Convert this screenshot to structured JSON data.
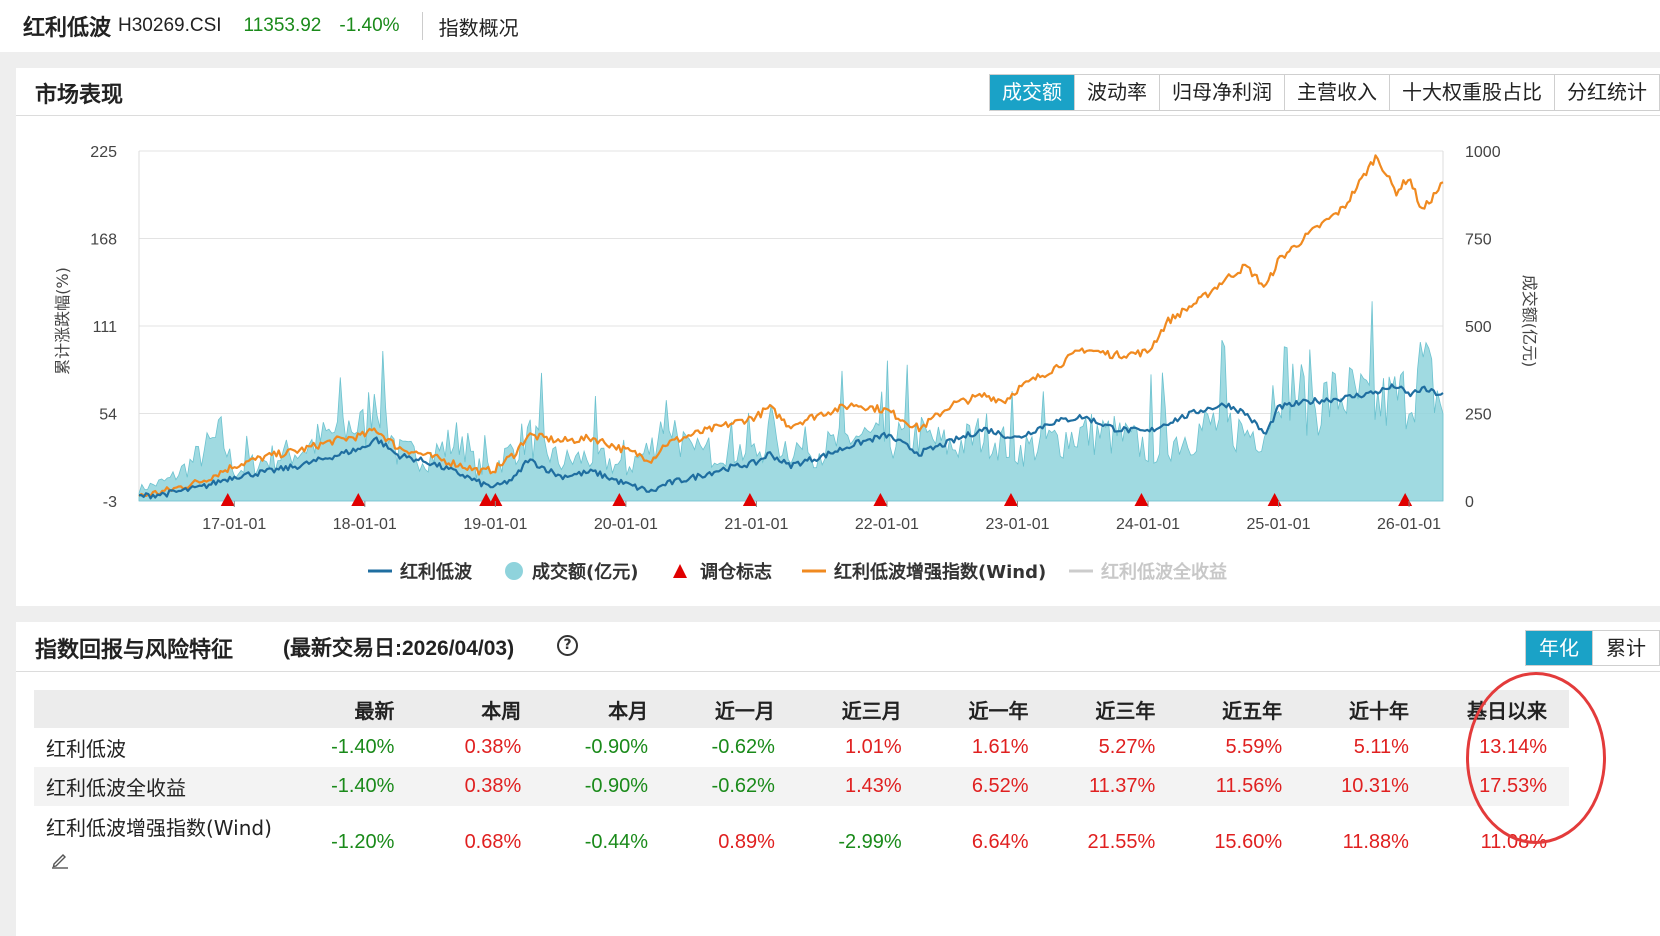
{
  "header": {
    "name": "红利低波",
    "code": "H30269.CSI",
    "price": "11353.92",
    "change": "-1.40%",
    "overview": "指数概况"
  },
  "market": {
    "title": "市场表现",
    "tabs": [
      "成交额",
      "波动率",
      "归母净利润",
      "主营收入",
      "十大权重股占比",
      "分红统计"
    ],
    "active_tab": "成交额"
  },
  "colors": {
    "index_line": "#1f6ea0",
    "volume_area": "#8fd3dc",
    "rebalance_marker": "#e00000",
    "enhanced_line": "#f08a20",
    "total_return_line": "#cccccc",
    "active_tab": "#1aa2c7",
    "positive": "#e02020",
    "negative": "#1a8a1a"
  },
  "chart_data": {
    "type": "line",
    "ylabel_left": "累计涨跌幅(%)",
    "ylabel_right": "成交额(亿元)",
    "yticks_left": [
      "225",
      "168",
      "111",
      "54",
      "-3"
    ],
    "yticks_right": [
      "1000",
      "750",
      "500",
      "250",
      "0"
    ],
    "ylim_left": [
      -3,
      225
    ],
    "ylim_right": [
      0,
      1000
    ],
    "xticks": [
      "17-01-01",
      "18-01-01",
      "19-01-01",
      "20-01-01",
      "21-01-01",
      "22-01-01",
      "23-01-01",
      "24-01-01",
      "25-01-01",
      "26-01-01"
    ],
    "xtick_years": [
      2017,
      2018,
      2019,
      2020,
      2021,
      2022,
      2023,
      2024,
      2025,
      2026
    ],
    "x_range_years": [
      2016.27,
      2026.26
    ],
    "legend": [
      "红利低波",
      "成交额(亿元)",
      "调仓标志",
      "红利低波增强指数(Wind)",
      "红利低波全收益"
    ],
    "legend_position": "bottom",
    "grid": true,
    "series": [
      {
        "name": "红利低波",
        "axis": "left",
        "x": [
          2016.27,
          2016.5,
          2016.75,
          2017.0,
          2017.25,
          2017.5,
          2017.75,
          2018.0,
          2018.08,
          2018.25,
          2018.5,
          2018.75,
          2018.9,
          2019.0,
          2019.15,
          2019.25,
          2019.5,
          2019.75,
          2020.0,
          2020.2,
          2020.3,
          2020.5,
          2020.75,
          2021.0,
          2021.1,
          2021.25,
          2021.5,
          2021.75,
          2022.0,
          2022.25,
          2022.5,
          2022.75,
          2022.9,
          2023.0,
          2023.25,
          2023.5,
          2023.75,
          2024.0,
          2024.15,
          2024.4,
          2024.6,
          2024.75,
          2024.9,
          2025.0,
          2025.25,
          2025.5,
          2025.75,
          2025.9,
          2026.0,
          2026.1,
          2026.26
        ],
        "values": [
          0,
          2,
          6,
          13,
          16,
          20,
          26,
          32,
          38,
          27,
          22,
          14,
          8,
          6,
          12,
          24,
          13,
          16,
          8,
          3,
          8,
          12,
          18,
          22,
          28,
          20,
          26,
          34,
          40,
          28,
          36,
          44,
          40,
          38,
          48,
          52,
          44,
          42,
          48,
          56,
          60,
          54,
          40,
          58,
          62,
          64,
          68,
          72,
          66,
          70,
          66
        ]
      },
      {
        "name": "红利低波增强指数(Wind)",
        "axis": "left",
        "x": [
          2016.27,
          2016.5,
          2016.75,
          2017.0,
          2017.25,
          2017.5,
          2017.75,
          2018.0,
          2018.08,
          2018.25,
          2018.5,
          2018.75,
          2018.9,
          2019.0,
          2019.15,
          2019.25,
          2019.5,
          2019.75,
          2020.0,
          2020.2,
          2020.3,
          2020.5,
          2020.75,
          2021.0,
          2021.1,
          2021.25,
          2021.5,
          2021.75,
          2022.0,
          2022.25,
          2022.5,
          2022.75,
          2022.9,
          2023.0,
          2023.25,
          2023.5,
          2023.75,
          2024.0,
          2024.15,
          2024.4,
          2024.6,
          2024.75,
          2024.9,
          2025.0,
          2025.25,
          2025.5,
          2025.75,
          2025.9,
          2026.0,
          2026.1,
          2026.26
        ],
        "values": [
          0,
          4,
          10,
          20,
          26,
          30,
          36,
          40,
          44,
          32,
          26,
          20,
          16,
          18,
          28,
          40,
          36,
          38,
          30,
          24,
          34,
          40,
          46,
          52,
          58,
          46,
          54,
          60,
          56,
          44,
          60,
          66,
          62,
          70,
          82,
          96,
          92,
          94,
          114,
          128,
          142,
          150,
          136,
          154,
          172,
          188,
          222,
          198,
          208,
          186,
          204
        ]
      },
      {
        "name": "成交额(亿元)",
        "axis": "right",
        "type": "area",
        "x": [
          2016.27,
          2016.5,
          2016.65,
          2016.9,
          2017.0,
          2017.25,
          2017.5,
          2017.9,
          2018.0,
          2018.08,
          2018.25,
          2018.5,
          2018.75,
          2018.85,
          2019.0,
          2019.25,
          2019.5,
          2019.75,
          2020.0,
          2020.2,
          2020.3,
          2020.5,
          2020.75,
          2021.0,
          2021.1,
          2021.25,
          2021.5,
          2021.75,
          2022.0,
          2022.25,
          2022.5,
          2022.75,
          2023.0,
          2023.25,
          2023.5,
          2023.75,
          2024.0,
          2024.25,
          2024.5,
          2024.75,
          2024.9,
          2025.0,
          2025.25,
          2025.5,
          2025.75,
          2026.0,
          2026.1,
          2026.26
        ],
        "values": [
          40,
          70,
          120,
          220,
          100,
          140,
          170,
          260,
          240,
          400,
          160,
          150,
          220,
          110,
          120,
          220,
          130,
          150,
          110,
          180,
          300,
          150,
          180,
          160,
          220,
          180,
          170,
          220,
          200,
          220,
          180,
          230,
          170,
          200,
          230,
          220,
          180,
          210,
          260,
          230,
          240,
          440,
          320,
          360,
          320,
          360,
          450,
          320
        ]
      },
      {
        "name": "调仓标志",
        "type": "marker",
        "x": [
          2016.95,
          2017.95,
          2018.93,
          2019.0,
          2019.95,
          2020.95,
          2021.95,
          2022.95,
          2023.95,
          2024.97,
          2025.97
        ]
      },
      {
        "name": "红利低波全收益",
        "type": "hidden",
        "x": [],
        "values": []
      }
    ]
  },
  "returns": {
    "title": "指数回报与风险特征",
    "date": "(最新交易日:2026/04/03)",
    "toggle": [
      "年化",
      "累计"
    ],
    "toggle_active": "年化",
    "columns": [
      "最新",
      "本周",
      "本月",
      "近一月",
      "近三月",
      "近一年",
      "近三年",
      "近五年",
      "近十年",
      "基日以来"
    ],
    "rows": [
      {
        "name": "红利低波",
        "values": [
          "-1.40%",
          "0.38%",
          "-0.90%",
          "-0.62%",
          "1.01%",
          "1.61%",
          "5.27%",
          "5.59%",
          "5.11%",
          "13.14%"
        ]
      },
      {
        "name": "红利低波全收益",
        "values": [
          "-1.40%",
          "0.38%",
          "-0.90%",
          "-0.62%",
          "1.43%",
          "6.52%",
          "11.37%",
          "11.56%",
          "10.31%",
          "17.53%"
        ]
      },
      {
        "name": "红利低波增强指数(Wind)",
        "values": [
          "-1.20%",
          "0.68%",
          "-0.44%",
          "0.89%",
          "-2.99%",
          "6.64%",
          "21.55%",
          "15.60%",
          "11.88%",
          "11.08%"
        ]
      }
    ]
  }
}
